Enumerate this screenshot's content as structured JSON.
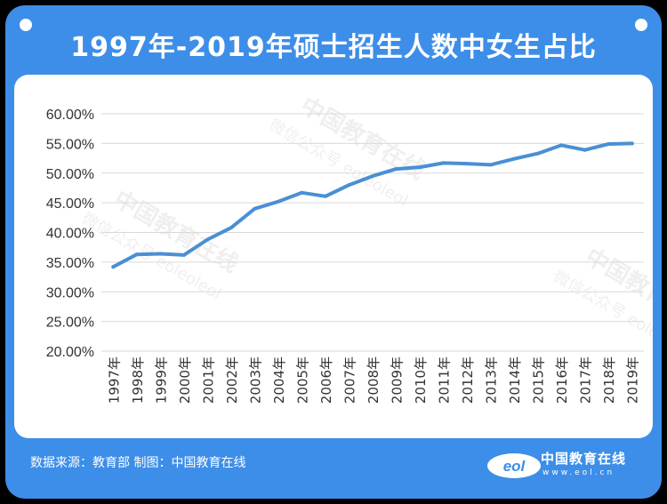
{
  "title": "1997年-2019年硕士招生人数中女生占比",
  "source": "数据来源：教育部  制图：中国教育在线",
  "logo": {
    "name": "中国教育在线",
    "url": "www.eol.cn",
    "mark": "eol"
  },
  "watermark": {
    "line1": "中国教育在线",
    "line2": "微信公众号 eoleoleol"
  },
  "colors": {
    "frame": "#3d8ee8",
    "line": "#4a8fd4",
    "grid": "#d9d9d9"
  },
  "chart_data": {
    "type": "line",
    "title": "",
    "xlabel": "",
    "ylabel": "",
    "ylim": [
      0.2,
      0.6
    ],
    "yticks": [
      "60.00%",
      "55.00%",
      "50.00%",
      "45.00%",
      "40.00%",
      "35.00%",
      "30.00%",
      "25.00%",
      "20.00%"
    ],
    "ytick_values": [
      0.6,
      0.55,
      0.5,
      0.45,
      0.4,
      0.35,
      0.3,
      0.25,
      0.2
    ],
    "grid": true,
    "legend": "none",
    "categories": [
      "1997年",
      "1998年",
      "1999年",
      "2000年",
      "2001年",
      "2002年",
      "2003年",
      "2004年",
      "2005年",
      "2006年",
      "2007年",
      "2008年",
      "2009年",
      "2010年",
      "2011年",
      "2012年",
      "2013年",
      "2014年",
      "2015年",
      "2016年",
      "2017年",
      "2018年",
      "2019年"
    ],
    "series": [
      {
        "values": [
          0.342,
          0.363,
          0.364,
          0.362,
          0.388,
          0.408,
          0.44,
          0.452,
          0.467,
          0.461,
          0.48,
          0.495,
          0.507,
          0.51,
          0.517,
          0.516,
          0.514,
          0.524,
          0.533,
          0.547,
          0.539,
          0.549,
          0.55
        ]
      }
    ]
  }
}
